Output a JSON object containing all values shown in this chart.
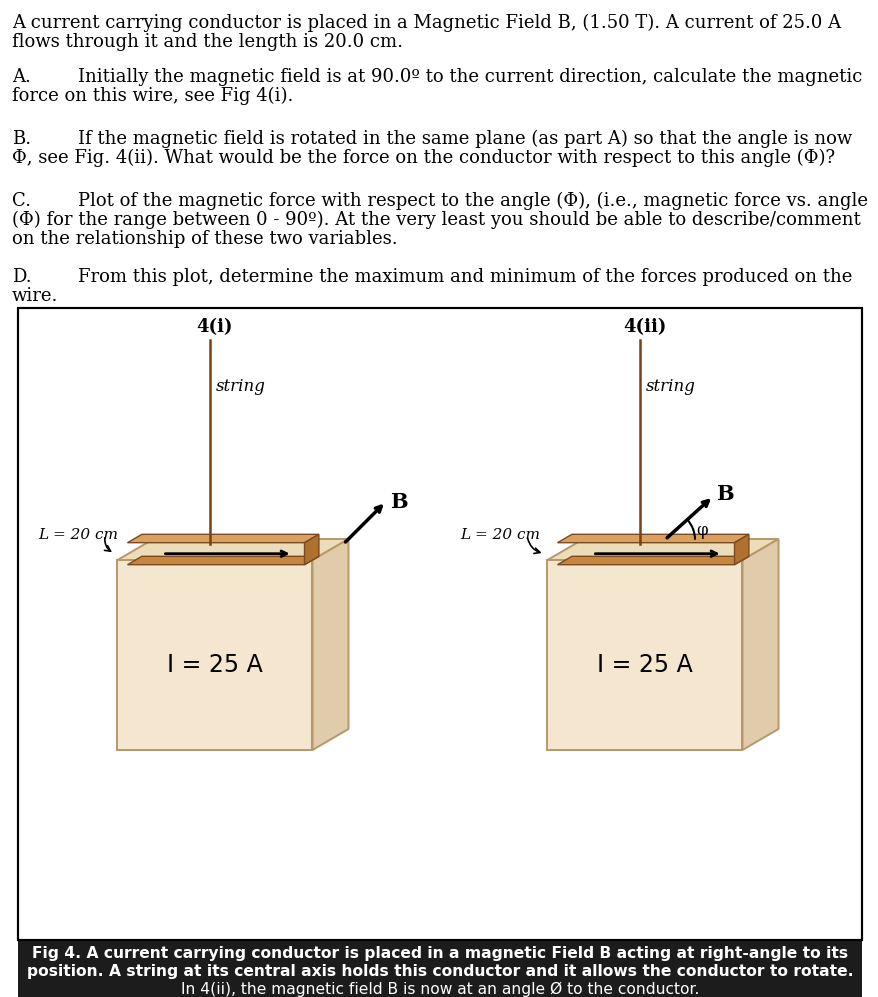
{
  "bg_color": "#ffffff",
  "text_color": "#000000",
  "box_face_front": "#f5e6d0",
  "box_face_top": "#eddcb8",
  "box_face_right": "#e0ccaa",
  "box_edge_color": "#b8976a",
  "conductor_face": "#c8863c",
  "conductor_top": "#daa060",
  "conductor_end": "#b07030",
  "string_color": "#7a4010",
  "caption_bg": "#1c1c1c",
  "caption_text": "#ffffff",
  "main_text_line1": "A current carrying conductor is placed in a Magnetic Field B, (1.50 T). A current of 25.0 A",
  "main_text_line2": "flows through it and the length is 20.0 cm.",
  "partA_label": "A.",
  "partA_indent": "Initially the magnetic field is at 90.0º to the current direction, calculate the magnetic",
  "partA_line2": "force on this wire, see Fig 4(i).",
  "partB_label": "B.",
  "partB_indent": "If the magnetic field is rotated in the same plane (as part A) so that the angle is now",
  "partB_line2": "Φ, see Fig. 4(ii). What would be the force on the conductor with respect to this angle (Φ)?",
  "partC_label": "C.",
  "partC_indent": "Plot of the magnetic force with respect to the angle (Φ), (i.e., magnetic force vs. angle",
  "partC_line2": "(Φ) for the range between 0 - 90º). At the very least you should be able to describe/comment",
  "partC_line3": "on the relationship of these two variables.",
  "partD_label": "D.",
  "partD_indent": "From this plot, determine the maximum and minimum of the forces produced on the",
  "partD_line2": "wire.",
  "fig_label_1": "4(i)",
  "fig_label_2": "4(ii)",
  "string_label": "string",
  "L_label": "L = 20 cm",
  "I_label": "I = 25 A",
  "B_label": "B",
  "phi_label": "φ",
  "cap_line1": "Fig 4. A current carrying conductor is placed in a magnetic Field B acting at right-angle to its",
  "cap_line2": "position. A string at its central axis holds this conductor and it allows the conductor to rotate.",
  "cap_line3": "In 4(ii), the magnetic field B is now at an angle Ø to the conductor."
}
